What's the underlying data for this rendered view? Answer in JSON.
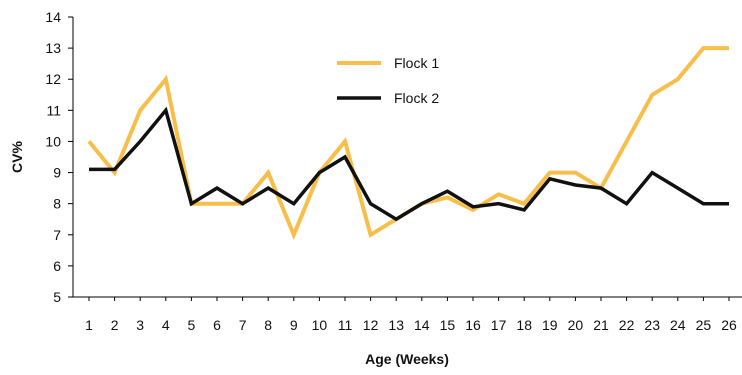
{
  "chart_data": {
    "type": "line",
    "title": "",
    "xlabel": "Age (Weeks)",
    "ylabel": "CV%",
    "x": [
      1,
      2,
      3,
      4,
      5,
      6,
      7,
      8,
      9,
      10,
      11,
      12,
      13,
      14,
      15,
      16,
      17,
      18,
      19,
      20,
      21,
      22,
      23,
      24,
      25,
      26
    ],
    "ylim": [
      5,
      14
    ],
    "yticks": [
      5,
      6,
      7,
      8,
      9,
      10,
      11,
      12,
      13,
      14
    ],
    "grid": false,
    "legend_position": "top-center",
    "series": [
      {
        "name": "Flock 1",
        "color": "#F7BE4A",
        "values": [
          10,
          9,
          11,
          12,
          8,
          8,
          8,
          9,
          7,
          9,
          10,
          7,
          7.5,
          8,
          8.2,
          7.8,
          8.3,
          8,
          9,
          9,
          8.5,
          10,
          11.5,
          12,
          13,
          13
        ]
      },
      {
        "name": "Flock 2",
        "color": "#111111",
        "values": [
          9.1,
          9.1,
          10,
          11,
          8,
          8.5,
          8,
          8.5,
          8,
          9,
          9.5,
          8,
          7.5,
          8,
          8.4,
          7.9,
          8,
          7.8,
          8.8,
          8.6,
          8.5,
          8,
          9,
          8.5,
          8,
          8
        ]
      }
    ]
  }
}
